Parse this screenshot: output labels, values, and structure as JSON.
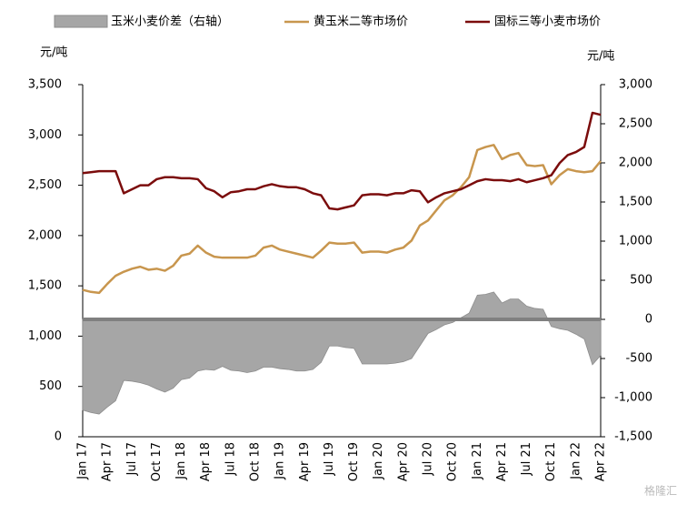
{
  "chart_data": {
    "type": "line",
    "y_unit": "元/吨",
    "y2_unit": "元/吨",
    "categories": [
      "Jan 17",
      null,
      null,
      "Apr 17",
      null,
      null,
      "Jul 17",
      null,
      null,
      "Oct 17",
      null,
      null,
      "Jan 18",
      null,
      null,
      "Apr 18",
      null,
      null,
      "Jul 18",
      null,
      null,
      "Oct 18",
      null,
      null,
      "Jan 19",
      null,
      null,
      "Apr 19",
      null,
      null,
      "Jul 19",
      null,
      null,
      "Oct 19",
      null,
      null,
      "Jan 20",
      null,
      null,
      "Apr 20",
      null,
      null,
      "Jul 20",
      null,
      null,
      "Oct 20",
      null,
      null,
      "Jan 21",
      null,
      null,
      "Apr 21",
      null,
      null,
      "Jul 21",
      null,
      null,
      "Oct 21",
      null,
      null,
      "Jan 22",
      null,
      null,
      "Apr 22"
    ],
    "series": [
      {
        "name": "玉米小麦价差（右轴）",
        "type": "area",
        "axis": "y2",
        "color": "#a6a6a6",
        "zero_line_color": "#808080",
        "values": [
          -1160,
          -1190,
          -1210,
          -1120,
          -1040,
          -780,
          -790,
          -810,
          -840,
          -890,
          -930,
          -880,
          -770,
          -750,
          -660,
          -640,
          -650,
          -600,
          -650,
          -660,
          -680,
          -660,
          -610,
          -610,
          -630,
          -640,
          -660,
          -660,
          -640,
          -550,
          -340,
          -340,
          -360,
          -370,
          -570,
          -570,
          -570,
          -570,
          -560,
          -540,
          -500,
          -340,
          -180,
          -130,
          -70,
          -40,
          20,
          80,
          310,
          320,
          350,
          210,
          260,
          260,
          170,
          140,
          130,
          -90,
          -120,
          -140,
          -190,
          -250,
          -580,
          -460
        ]
      },
      {
        "name": "黄玉米二等市场价",
        "type": "line",
        "color": "#c8964e",
        "values": [
          1460,
          1440,
          1430,
          1520,
          1600,
          1640,
          1670,
          1690,
          1660,
          1670,
          1650,
          1700,
          1800,
          1820,
          1900,
          1830,
          1790,
          1780,
          1780,
          1780,
          1780,
          1800,
          1880,
          1900,
          1860,
          1840,
          1820,
          1800,
          1780,
          1850,
          1930,
          1920,
          1920,
          1930,
          1830,
          1840,
          1840,
          1830,
          1860,
          1880,
          1950,
          2100,
          2150,
          2250,
          2350,
          2400,
          2480,
          2580,
          2850,
          2880,
          2900,
          2760,
          2800,
          2820,
          2700,
          2690,
          2700,
          2510,
          2600,
          2660,
          2640,
          2630,
          2640,
          2740
        ]
      },
      {
        "name": "国标三等小麦市场价",
        "type": "line",
        "color": "#7b0c0c",
        "values": [
          2620,
          2630,
          2640,
          2640,
          2640,
          2420,
          2460,
          2500,
          2500,
          2560,
          2580,
          2580,
          2570,
          2570,
          2560,
          2470,
          2440,
          2380,
          2430,
          2440,
          2460,
          2460,
          2490,
          2510,
          2490,
          2480,
          2480,
          2460,
          2420,
          2400,
          2270,
          2260,
          2280,
          2300,
          2400,
          2410,
          2410,
          2400,
          2420,
          2420,
          2450,
          2440,
          2330,
          2380,
          2420,
          2440,
          2460,
          2500,
          2540,
          2560,
          2550,
          2550,
          2540,
          2560,
          2530,
          2550,
          2570,
          2600,
          2720,
          2800,
          2830,
          2880,
          3220,
          3200
        ]
      }
    ],
    "ylim": [
      0,
      3500
    ],
    "yticks": [
      0,
      500,
      {
        "value": 1000,
        "label": "1,000"
      },
      {
        "value": 1500,
        "label": "1,500"
      },
      {
        "value": 2000,
        "label": "2,000"
      },
      {
        "value": 2500,
        "label": "2,500"
      },
      {
        "value": 3000,
        "label": "3,000"
      },
      {
        "value": 3500,
        "label": "3,500"
      }
    ],
    "y2lim": [
      -1500,
      3000
    ],
    "y2ticks": [
      {
        "value": -1500,
        "label": "-1,500"
      },
      {
        "value": -1000,
        "label": "-1,000"
      },
      -500,
      0,
      500,
      {
        "value": 1000,
        "label": "1,000"
      },
      {
        "value": 1500,
        "label": "1,500"
      },
      {
        "value": 2000,
        "label": "2,000"
      },
      {
        "value": 2500,
        "label": "2,500"
      },
      {
        "value": 3000,
        "label": "3,000"
      }
    ],
    "legend": "top",
    "watermark": "格隆汇"
  }
}
